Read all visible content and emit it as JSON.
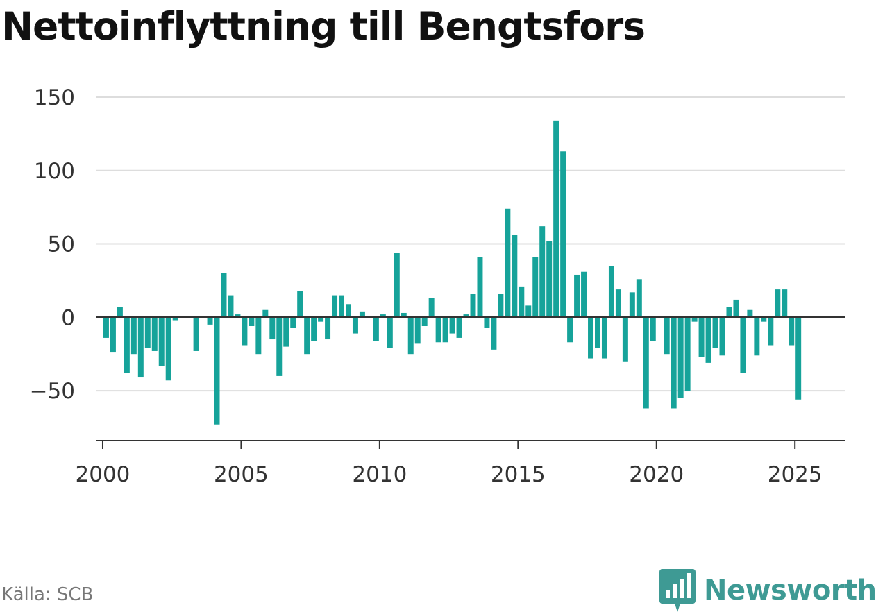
{
  "title": "Nettoinflyttning till Bengtsfors",
  "source": "Källa: SCB",
  "brand": "Newsworthy",
  "colors": {
    "bar": "#16a39a",
    "grid": "#dddddd",
    "zero_line": "#333333",
    "brand": "#3e9a94"
  },
  "chart_data": {
    "type": "bar",
    "title": "Nettoinflyttning till Bengtsfors",
    "xlabel": "",
    "ylabel": "",
    "ylim": [
      -84,
      150
    ],
    "yticks": [
      -50,
      0,
      50,
      100,
      150
    ],
    "yticklabels": [
      "−50",
      "0",
      "50",
      "100",
      "150"
    ],
    "xlim": [
      1999.75,
      2026.8
    ],
    "xticks": [
      2000,
      2005,
      2010,
      2015,
      2020,
      2025
    ],
    "xticklabels": [
      "2000",
      "2005",
      "2010",
      "2015",
      "2020",
      "2025"
    ],
    "grid": true,
    "frequency": "quarterly",
    "start": [
      2000,
      1
    ],
    "values": [
      -14,
      -24,
      7,
      -38,
      -25,
      -41,
      -21,
      -23,
      -33,
      -43,
      -2,
      null,
      null,
      -23,
      null,
      -5,
      -73,
      30,
      15,
      2,
      -19,
      -6,
      -25,
      5,
      -15,
      -40,
      -20,
      -7,
      18,
      -25,
      -16,
      -3,
      -15,
      15,
      15,
      9,
      -11,
      4,
      null,
      -16,
      2,
      -21,
      44,
      3,
      -25,
      -18,
      -6,
      13,
      -17,
      -17,
      -11,
      -14,
      2,
      16,
      41,
      -7,
      -22,
      16,
      74,
      56,
      21,
      8,
      41,
      62,
      52,
      134,
      113,
      -17,
      29,
      31,
      -28,
      -21,
      -28,
      35,
      19,
      -30,
      17,
      26,
      -62,
      -16,
      null,
      -25,
      -62,
      -55,
      -50,
      -3,
      -27,
      -31,
      -21,
      -26,
      7,
      12,
      -38,
      5,
      -26,
      -3,
      -19,
      19,
      19,
      -19,
      -56
    ]
  }
}
